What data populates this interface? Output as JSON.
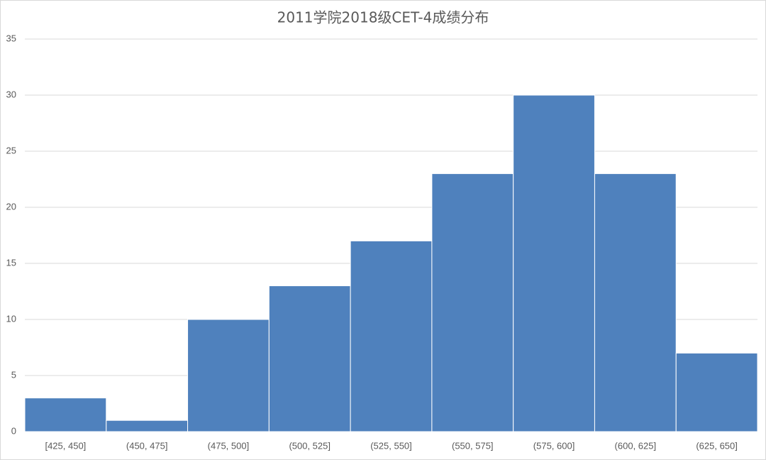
{
  "chart_data": {
    "type": "bar",
    "title": "2011学院2018级CET-4成绩分布",
    "categories": [
      "[425, 450]",
      "(450, 475]",
      "(475, 500]",
      "(500, 525]",
      "(525, 550]",
      "(550, 575]",
      "(575, 600]",
      "(600, 625]",
      "(625, 650]"
    ],
    "values": [
      3,
      1,
      10,
      13,
      17,
      23,
      30,
      23,
      7
    ],
    "color": "#4f81bd",
    "ylim": [
      0,
      35
    ],
    "yticks": [
      0,
      5,
      10,
      15,
      20,
      25,
      30,
      35
    ],
    "grid": true
  }
}
